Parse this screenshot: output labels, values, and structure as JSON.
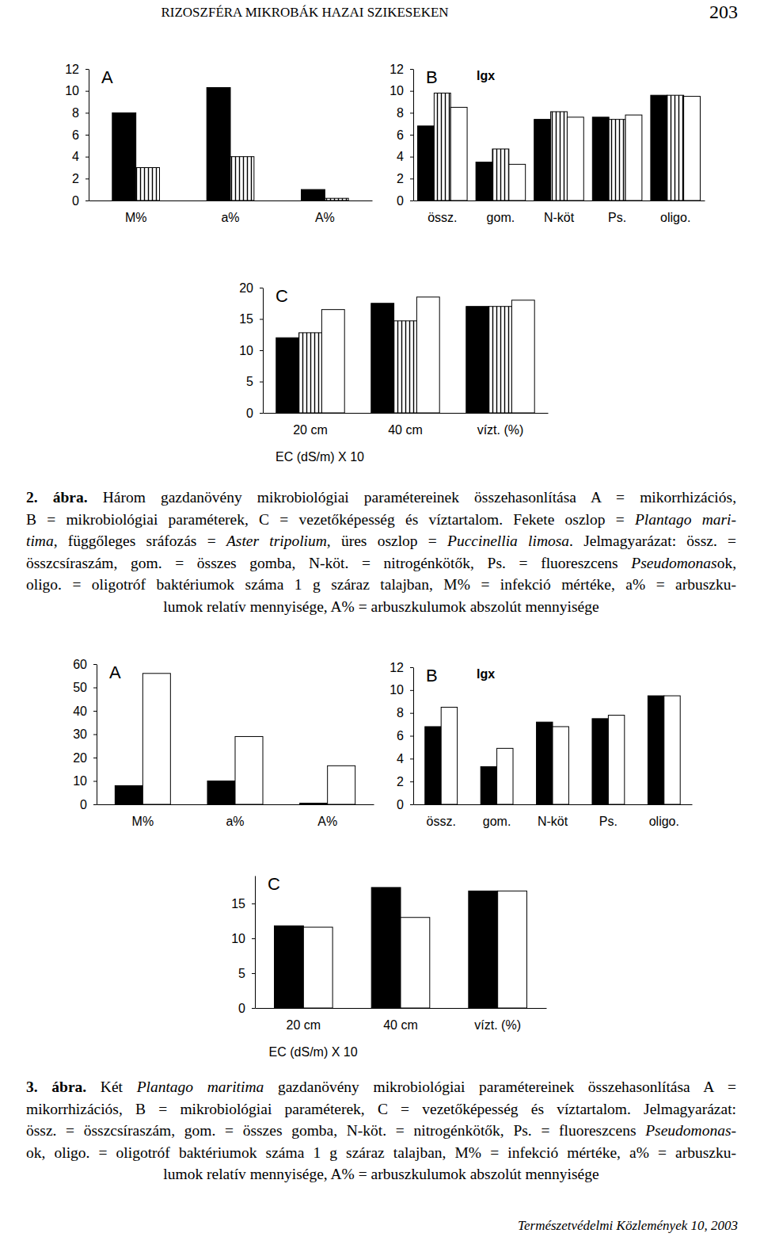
{
  "header": {
    "title": "RIZOSZFÉRA MIKROBÁK HAZAI SZIKESEKEN",
    "page_number": "203"
  },
  "chart_data": [
    {
      "type": "bar",
      "title": "A",
      "categories": [
        "M%",
        "a%",
        "A%"
      ],
      "series": [
        {
          "color": "#000000",
          "values": [
            8,
            10.3,
            1
          ]
        },
        {
          "color": "#000000",
          "marker": "hatch",
          "values": [
            3,
            4,
            0.2
          ]
        }
      ],
      "ylim": [
        0,
        12
      ],
      "yticks": [
        0,
        2,
        4,
        6,
        8,
        10,
        12
      ]
    },
    {
      "type": "bar",
      "title": "B",
      "annotations": [
        "lgx"
      ],
      "categories": [
        "össz.",
        "gom.",
        "N-köt",
        "Ps.",
        "oligo."
      ],
      "series": [
        {
          "color": "#000000",
          "values": [
            6.8,
            3.5,
            7.4,
            7.6,
            9.6
          ]
        },
        {
          "color": "#000000",
          "marker": "hatch",
          "values": [
            9.8,
            4.7,
            8.1,
            7.4,
            9.6
          ]
        },
        {
          "color": "#ffffff",
          "values": [
            8.5,
            3.3,
            7.6,
            7.8,
            9.5
          ]
        }
      ],
      "ylim": [
        0,
        12
      ],
      "yticks": [
        0,
        2,
        4,
        6,
        8,
        10,
        12
      ]
    },
    {
      "type": "bar",
      "title": "C",
      "x_label": "EC (dS/m) X 10",
      "categories": [
        "20 cm",
        "40 cm",
        "vízt. (%)"
      ],
      "series": [
        {
          "color": "#000000",
          "values": [
            12,
            17.5,
            17
          ]
        },
        {
          "color": "#000000",
          "marker": "hatch",
          "values": [
            12.8,
            14.7,
            17
          ]
        },
        {
          "color": "#ffffff",
          "values": [
            16.5,
            18.5,
            18
          ]
        }
      ],
      "ylim": [
        0,
        20
      ],
      "yticks": [
        0,
        5,
        10,
        15,
        20
      ]
    },
    {
      "type": "bar",
      "title": "A",
      "categories": [
        "M%",
        "a%",
        "A%"
      ],
      "series": [
        {
          "color": "#000000",
          "values": [
            8,
            10,
            0.5
          ]
        },
        {
          "color": "#ffffff",
          "values": [
            56,
            29,
            16.5
          ]
        }
      ],
      "ylim": [
        0,
        60
      ],
      "yticks": [
        0,
        10,
        20,
        30,
        40,
        50,
        60
      ]
    },
    {
      "type": "bar",
      "title": "B",
      "annotations": [
        "lgx"
      ],
      "categories": [
        "össz.",
        "gom.",
        "N-köt",
        "Ps.",
        "oligo."
      ],
      "series": [
        {
          "color": "#000000",
          "values": [
            6.8,
            3.3,
            7.2,
            7.5,
            9.5
          ]
        },
        {
          "color": "#ffffff",
          "values": [
            8.5,
            4.9,
            6.8,
            7.8,
            9.5
          ]
        }
      ],
      "ylim": [
        0,
        12
      ],
      "yticks": [
        0,
        2,
        4,
        6,
        8,
        10,
        12
      ]
    },
    {
      "type": "bar",
      "title": "C",
      "x_label": "EC (dS/m) X 10",
      "categories": [
        "20 cm",
        "40 cm",
        "vízt. (%)"
      ],
      "series": [
        {
          "color": "#000000",
          "values": [
            11.8,
            17.3,
            16.8
          ]
        },
        {
          "color": "#ffffff",
          "values": [
            11.6,
            13,
            16.8
          ]
        }
      ],
      "ylim": [
        0,
        19
      ],
      "yticks": [
        0,
        5,
        10,
        15
      ]
    }
  ],
  "captions": [
    {
      "lines": [
        {
          "runs": [
            {
              "text": "2. ábra.",
              "bold": true
            },
            {
              "text": " Három gazdanövény mikrobiológiai paramétereinek összehasonlítása A = mikorrhizációs,"
            }
          ]
        },
        {
          "runs": [
            {
              "text": "B = mikrobiológiai paraméterek, C = vezetőképesség és víztartalom. Fekete oszlop = "
            },
            {
              "text": "Plantago mari-",
              "italic": true
            }
          ]
        },
        {
          "runs": [
            {
              "text": "tima",
              "italic": true
            },
            {
              "text": ", függőleges sráfozás = "
            },
            {
              "text": "Aster tripolium",
              "italic": true
            },
            {
              "text": ", üres oszlop = "
            },
            {
              "text": "Puccinellia limosa",
              "italic": true
            },
            {
              "text": ". Jelmagyarázat: össz. ="
            }
          ]
        },
        {
          "runs": [
            {
              "text": "összcsíraszám, gom. = összes gomba, N-köt. = nitrogénkötők, Ps. = fluoreszcens "
            },
            {
              "text": "Pseudomonas",
              "italic": true
            },
            {
              "text": "ok,"
            }
          ]
        },
        {
          "runs": [
            {
              "text": "oligo. = oligotróf baktériumok száma 1 g száraz talajban, M% = infekció mértéke, a% = arbuszku-"
            }
          ]
        },
        {
          "runs": [
            {
              "text": "lumok relatív mennyisége, A% = arbuszkulumok abszolút mennyisége"
            }
          ]
        }
      ]
    },
    {
      "lines": [
        {
          "runs": [
            {
              "text": "3. ábra.",
              "bold": true
            },
            {
              "text": " Két "
            },
            {
              "text": "Plantago maritima",
              "italic": true
            },
            {
              "text": " gazdanövény mikrobiológiai paramétereinek összehasonlítása A ="
            }
          ]
        },
        {
          "runs": [
            {
              "text": "mikorrhizációs, B = mikrobiológiai paraméterek, C = vezetőképesség és víztartalom. Jelmagyarázat:"
            }
          ]
        },
        {
          "runs": [
            {
              "text": "össz. = összcsíraszám, gom. = összes gomba, N-köt. = nitrogénkötők, Ps. = fluoreszcens "
            },
            {
              "text": "Pseudomonas-",
              "italic": true
            }
          ]
        },
        {
          "runs": [
            {
              "text": "ok, oligo. = oligotróf baktériumok száma 1 g száraz talajban, M% = infekció mértéke, a% = arbuszku-"
            }
          ]
        },
        {
          "runs": [
            {
              "text": "lumok relatív mennyisége, A% = arbuszkulumok abszolút mennyisége"
            }
          ]
        }
      ]
    }
  ],
  "footer": {
    "text": "Természetvédelmi Közlemények 10, 2003"
  }
}
